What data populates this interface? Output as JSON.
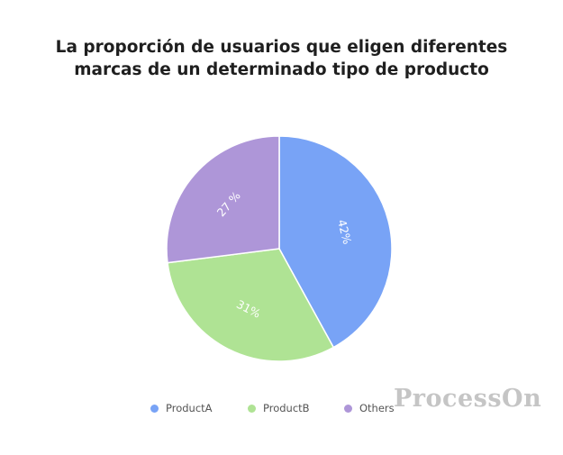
{
  "chart_data": {
    "type": "pie",
    "title_lines": [
      "La proporción de usuarios que eligen diferentes",
      "marcas de un determinado tipo de producto"
    ],
    "categories": [
      "ProductA",
      "ProductB",
      "Others"
    ],
    "values": [
      42,
      31,
      27
    ],
    "labels": [
      "42%",
      "31%",
      "27 %"
    ],
    "colors": [
      "#78a3f6",
      "#afe394",
      "#ae96d8"
    ],
    "legend_position": "bottom"
  },
  "watermark": "ProcessOn"
}
